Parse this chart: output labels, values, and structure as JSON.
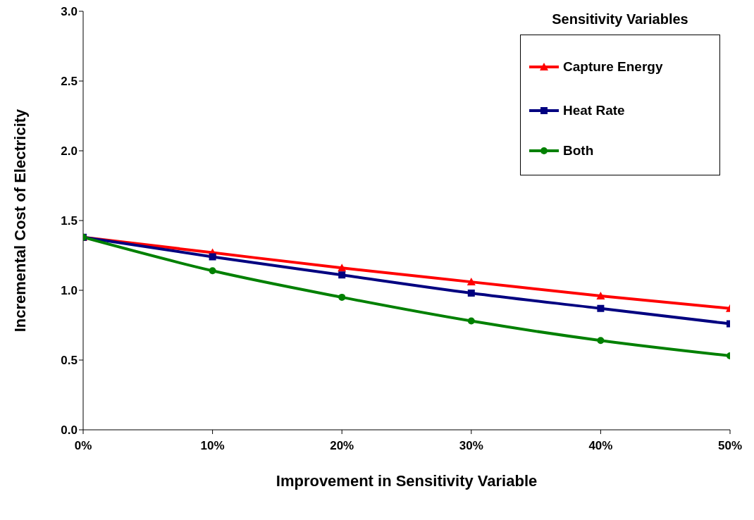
{
  "chart_data": {
    "type": "line",
    "xlabel": "Improvement in Sensitivity Variable",
    "ylabel": "Incremental Cost of Electricity",
    "legend_title": "Sensitivity Variables",
    "legend": "top right",
    "grid": false,
    "line_style": "solid",
    "x": [
      0,
      10,
      20,
      30,
      40,
      50
    ],
    "xlim": [
      0,
      50
    ],
    "xticks": [
      {
        "value": 0,
        "label": "0%"
      },
      {
        "value": 10,
        "label": "10%"
      },
      {
        "value": 20,
        "label": "20%"
      },
      {
        "value": 30,
        "label": "30%"
      },
      {
        "value": 40,
        "label": "40%"
      },
      {
        "value": 50,
        "label": "50%"
      }
    ],
    "ylim": [
      0,
      3
    ],
    "yticks": [
      {
        "value": 0,
        "label": "0.0"
      },
      {
        "value": 0.5,
        "label": "0.5"
      },
      {
        "value": 1,
        "label": "1.0"
      },
      {
        "value": 1.5,
        "label": "1.5"
      },
      {
        "value": 2,
        "label": "2.0"
      },
      {
        "value": 2.5,
        "label": "2.5"
      },
      {
        "value": 3,
        "label": "3.0"
      }
    ],
    "series": [
      {
        "name": "Capture Energy",
        "color": "#ff0000",
        "marker": "triangle",
        "values": [
          1.38,
          1.27,
          1.16,
          1.06,
          0.96,
          0.87
        ]
      },
      {
        "name": "Heat Rate",
        "color": "#000080",
        "marker": "square",
        "values": [
          1.38,
          1.24,
          1.11,
          0.98,
          0.87,
          0.76
        ]
      },
      {
        "name": "Both",
        "color": "#008000",
        "marker": "circle",
        "values": [
          1.38,
          1.14,
          0.95,
          0.78,
          0.64,
          0.53
        ]
      }
    ]
  }
}
